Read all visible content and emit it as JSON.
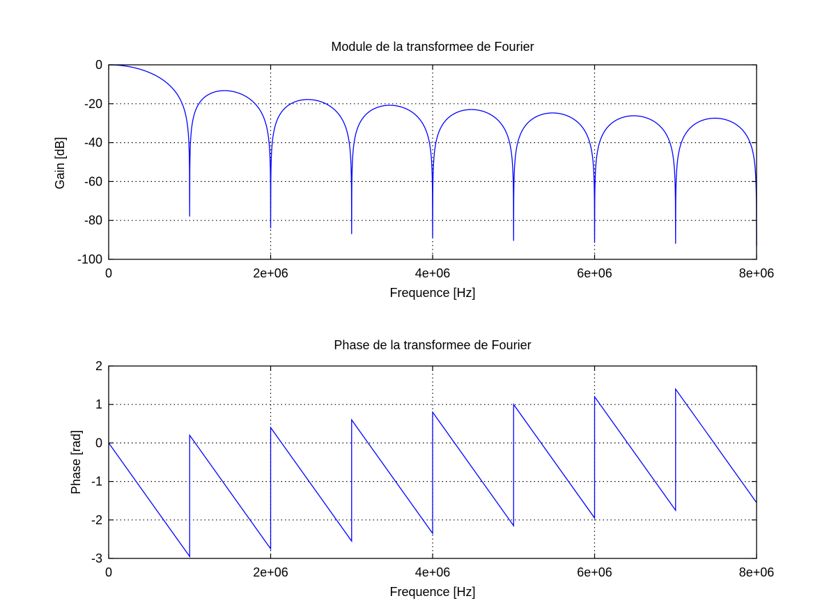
{
  "colors": {
    "line": "#0000ff",
    "axis": "#000000",
    "grid": "#000000",
    "background": "#ffffff"
  },
  "chart_data": [
    {
      "type": "line",
      "title": "Module de la transformee de Fourier",
      "xlabel": "Frequence [Hz]",
      "ylabel": "Gain [dB]",
      "xlim": [
        0,
        8000000
      ],
      "ylim": [
        -100,
        0
      ],
      "x_ticks": [
        0,
        2000000,
        4000000,
        6000000,
        8000000
      ],
      "x_tick_labels": [
        "0",
        "2e+06",
        "4e+06",
        "6e+06",
        "8e+06"
      ],
      "y_ticks": [
        -100,
        -80,
        -60,
        -40,
        -20,
        0
      ],
      "y_tick_labels": [
        "-100",
        "-80",
        "-60",
        "-40",
        "-20",
        "0"
      ],
      "grid": true,
      "series": [
        {
          "function": "20*log10(|sinc(f/1e6)|)",
          "x_range": [
            0,
            8000000
          ],
          "null_depths": [
            {
              "x": 1000000,
              "y": -78
            },
            {
              "x": 2000000,
              "y": -84
            },
            {
              "x": 3000000,
              "y": -87
            },
            {
              "x": 4000000,
              "y": -89
            },
            {
              "x": 5000000,
              "y": -90.5
            },
            {
              "x": 6000000,
              "y": -91.5
            },
            {
              "x": 7000000,
              "y": -92
            },
            {
              "x": 8000000,
              "y": -93
            }
          ]
        }
      ]
    },
    {
      "type": "line",
      "title": "Phase de la transformee de Fourier",
      "xlabel": "Frequence [Hz]",
      "ylabel": "Phase [rad]",
      "xlim": [
        0,
        8000000
      ],
      "ylim": [
        -3,
        2
      ],
      "x_ticks": [
        0,
        2000000,
        4000000,
        6000000,
        8000000
      ],
      "x_tick_labels": [
        "0",
        "2e+06",
        "4e+06",
        "6e+06",
        "8e+06"
      ],
      "y_ticks": [
        -3,
        -2,
        -1,
        0,
        1,
        2
      ],
      "y_tick_labels": [
        "-3",
        "-2",
        "-1",
        "0",
        "1",
        "2"
      ],
      "grid": true,
      "series": [
        {
          "points": [
            [
              0,
              0
            ],
            [
              1000000,
              -2.95
            ],
            [
              1000000,
              0.2
            ],
            [
              2000000,
              -2.75
            ],
            [
              2000000,
              0.4
            ],
            [
              3000000,
              -2.55
            ],
            [
              3000000,
              0.6
            ],
            [
              4000000,
              -2.35
            ],
            [
              4000000,
              0.8
            ],
            [
              5000000,
              -2.15
            ],
            [
              5000000,
              1.0
            ],
            [
              6000000,
              -1.95
            ],
            [
              6000000,
              1.2
            ],
            [
              7000000,
              -1.75
            ],
            [
              7000000,
              1.4
            ],
            [
              8000000,
              -1.55
            ]
          ]
        }
      ]
    }
  ]
}
